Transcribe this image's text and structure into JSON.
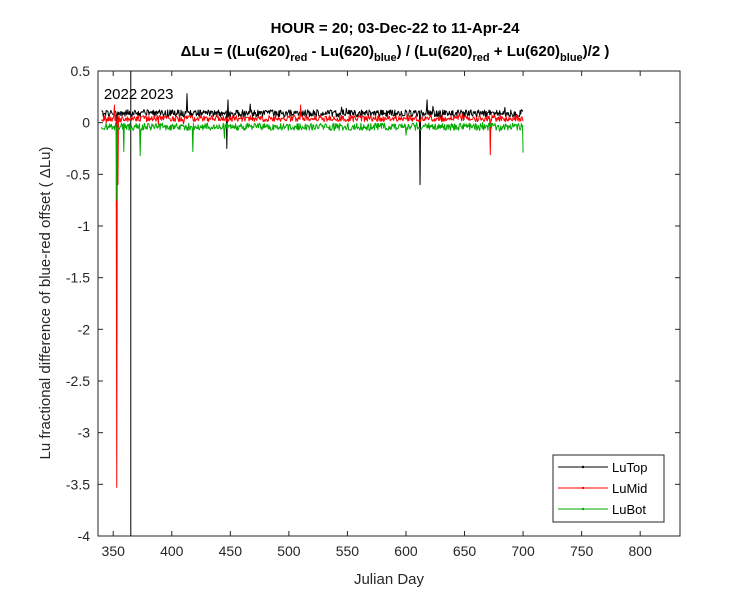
{
  "chart_data": {
    "type": "line",
    "title_line1": "HOUR = 20; 03-Dec-22 to 11-Apr-24",
    "title_line2": {
      "p1": "ΔLu = ((Lu(620)",
      "s1": "red",
      "p2": " - Lu(620)",
      "s2": "blue",
      "p3": ") / (Lu(620)",
      "s3": "red",
      "p4": " + Lu(620)",
      "s4": "blue",
      "p5": ")/2  )"
    },
    "xlabel": "Julian Day",
    "ylabel": "Lu fractional difference of blue-red offset (  ΔLu)",
    "xlim": [
      337,
      834
    ],
    "ylim": [
      -4,
      0.5
    ],
    "xticks": [
      350,
      400,
      450,
      500,
      550,
      600,
      650,
      700,
      750,
      800
    ],
    "yticks": [
      0.5,
      0,
      -0.5,
      -1,
      -1.5,
      -2,
      -2.5,
      -3,
      -3.5,
      -4
    ],
    "ytick_labels": [
      "0.5",
      "0",
      "-0.5",
      "-1",
      "-1.5",
      "-2",
      "-2.5",
      "-3",
      "-3.5",
      "-4"
    ],
    "year_marker_x": 365,
    "year_labels": [
      {
        "text": "2022",
        "x": 342
      },
      {
        "text": "2023",
        "x": 373
      }
    ],
    "legend": {
      "position": "bottom-right"
    },
    "series": [
      {
        "name": "LuTop",
        "color": "#000000",
        "baseline": 0.09,
        "amplitude": 0.035,
        "spikes": [
          [
            353,
            -0.35
          ],
          [
            413,
            0.28
          ],
          [
            447,
            -0.25
          ],
          [
            448,
            0.22
          ],
          [
            467,
            0.18
          ],
          [
            612,
            -0.6
          ],
          [
            613,
            0.12
          ],
          [
            618,
            0.22
          ]
        ]
      },
      {
        "name": "LuMid",
        "color": "#ff0000",
        "baseline": 0.04,
        "amplitude": 0.03,
        "spikes": [
          [
            351,
            0.17
          ],
          [
            353,
            -3.53
          ],
          [
            354,
            -0.6
          ],
          [
            510,
            0.17
          ],
          [
            672,
            -0.31
          ]
        ]
      },
      {
        "name": "LuBot",
        "color": "#00aa00",
        "baseline": -0.04,
        "amplitude": 0.035,
        "spikes": [
          [
            353,
            -0.75
          ],
          [
            359,
            -0.28
          ],
          [
            373,
            -0.32
          ],
          [
            418,
            -0.28
          ],
          [
            445,
            -0.15
          ],
          [
            600,
            -0.12
          ],
          [
            700,
            -0.29
          ]
        ]
      }
    ],
    "x_start": 340,
    "x_end": 700
  }
}
